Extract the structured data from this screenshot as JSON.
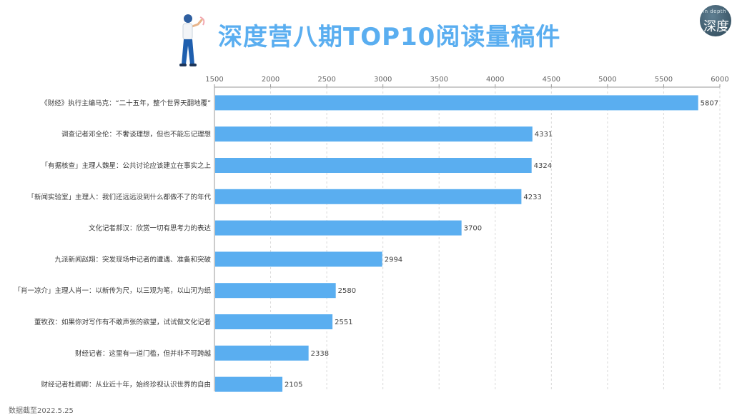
{
  "title": "深度营八期TOP10阅读量稿件",
  "logo": {
    "sub": "In depth",
    "main": "深度"
  },
  "footnote": "数据截至2022.5.25",
  "colors": {
    "bar": "#5aaef0",
    "title": "#5aaef0"
  },
  "chart_data": {
    "type": "bar",
    "orientation": "horizontal",
    "title": "深度营八期TOP10阅读量稿件",
    "xlabel": "",
    "ylabel": "",
    "xlim": [
      1500,
      6000
    ],
    "xticks": [
      1500,
      2000,
      2500,
      3000,
      3500,
      4000,
      4500,
      5000,
      5500,
      6000
    ],
    "axis_position": "top",
    "grid": "vertical dashed",
    "categories": [
      "《财经》执行主编马克：“二十五年，整个世界天翻地覆”",
      "调查记者邓全伦：不奢谈理想，但也不能忘记理想",
      "「有据核查」主理人魏星：公共讨论应该建立在事实之上",
      "「新闻实验室」主理人：我们还远远没到什么都做不了的年代",
      "文化记者郝汉：欣赏一切有思考力的表达",
      "九派新闻赵翔：突发现场中记者的遭遇、准备和突破",
      "「肖一凉介」主理人肖一：以新传为尺，以三观为笔，以山河为纸",
      "董牧孜：如果你对写作有不敢声张的欲望，试试做文化记者",
      "财经记者：这里有一道门槛，但并非不可跨越",
      "财经记者杜卿卿：从业近十年，始终珍视认识世界的自由"
    ],
    "values": [
      5807,
      4331,
      4324,
      4233,
      3700,
      2994,
      2580,
      2551,
      2338,
      2105
    ]
  }
}
